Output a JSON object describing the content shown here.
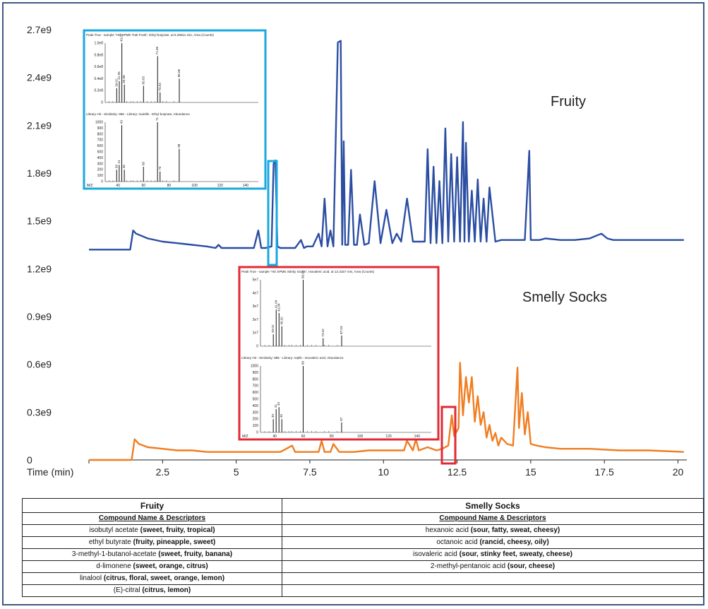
{
  "chart_data": {
    "type": "line",
    "xlabel": "Time (min)",
    "xlim": [
      0,
      20.3
    ],
    "ylim": [
      0,
      2.7
    ],
    "x_ticks": [
      "2.5",
      "5",
      "7.5",
      "10",
      "12.5",
      "15",
      "17.5",
      "20"
    ],
    "y_ticks": [
      "0",
      "0.3e9",
      "0.6e9",
      "0.9e9",
      "1.2e9",
      "1.5e9",
      "1.8e9",
      "2.1e9",
      "2.4e9",
      "2.7e9"
    ],
    "series": [
      {
        "name": "Fruity",
        "color": "#2b4ea2",
        "x": [
          0,
          1.4,
          1.5,
          1.6,
          2.0,
          2.5,
          3.0,
          3.5,
          4.0,
          4.3,
          4.4,
          4.5,
          4.8,
          5.0,
          5.6,
          5.75,
          5.85,
          5.95,
          6.0,
          6.2,
          6.27,
          6.33,
          6.4,
          6.5,
          7.0,
          7.2,
          7.3,
          7.4,
          7.6,
          7.8,
          7.9,
          8.0,
          8.1,
          8.2,
          8.3,
          8.45,
          8.55,
          8.6,
          8.65,
          8.7,
          8.8,
          8.9,
          9.0,
          9.1,
          9.2,
          9.35,
          9.5,
          9.7,
          9.9,
          10.1,
          10.3,
          10.45,
          10.6,
          10.8,
          11.0,
          11.2,
          11.4,
          11.5,
          11.6,
          11.7,
          11.8,
          11.9,
          12.0,
          12.1,
          12.2,
          12.3,
          12.4,
          12.5,
          12.6,
          12.7,
          12.75,
          12.8,
          12.9,
          13.0,
          13.1,
          13.2,
          13.3,
          13.4,
          13.5,
          13.6,
          13.8,
          14.0,
          14.2,
          14.4,
          14.6,
          14.8,
          14.95,
          15.0,
          15.1,
          15.3,
          15.5,
          16.0,
          16.5,
          17.0,
          17.4,
          17.6,
          17.8,
          18.0,
          18.5,
          19.0,
          19.5,
          20.2
        ],
        "y": [
          1.32,
          1.32,
          1.44,
          1.42,
          1.39,
          1.37,
          1.36,
          1.35,
          1.34,
          1.33,
          1.35,
          1.33,
          1.33,
          1.33,
          1.33,
          1.44,
          1.33,
          1.33,
          1.33,
          1.34,
          1.86,
          1.88,
          1.34,
          1.33,
          1.33,
          1.38,
          1.33,
          1.34,
          1.34,
          1.42,
          1.34,
          1.64,
          1.34,
          1.44,
          1.34,
          2.62,
          2.63,
          1.35,
          2.0,
          1.35,
          1.35,
          1.82,
          1.35,
          1.35,
          1.54,
          1.35,
          1.36,
          1.75,
          1.36,
          1.57,
          1.36,
          1.42,
          1.37,
          1.64,
          1.37,
          1.37,
          1.37,
          1.95,
          1.36,
          1.84,
          1.36,
          1.75,
          1.36,
          2.08,
          1.37,
          1.92,
          1.37,
          1.9,
          1.37,
          2.12,
          1.37,
          1.99,
          1.37,
          1.69,
          1.37,
          1.76,
          1.37,
          1.64,
          1.37,
          1.71,
          1.37,
          1.38,
          1.38,
          1.38,
          1.38,
          1.38,
          1.94,
          1.38,
          1.38,
          1.38,
          1.39,
          1.38,
          1.38,
          1.39,
          1.42,
          1.39,
          1.38,
          1.38,
          1.38,
          1.38,
          1.38,
          1.38
        ]
      },
      {
        "name": "Smelly Socks",
        "color": "#f07d21",
        "x": [
          0,
          1.45,
          1.55,
          1.7,
          2.0,
          2.5,
          3.0,
          3.5,
          4.0,
          4.5,
          5.0,
          5.5,
          6.0,
          6.5,
          6.9,
          7.0,
          7.5,
          7.8,
          7.9,
          8.0,
          8.2,
          8.3,
          8.5,
          9.0,
          9.5,
          10.0,
          10.5,
          10.7,
          10.8,
          11.0,
          11.1,
          11.2,
          11.5,
          11.8,
          12.0,
          12.2,
          12.32,
          12.4,
          12.55,
          12.6,
          12.7,
          12.8,
          12.9,
          13.0,
          13.1,
          13.2,
          13.3,
          13.4,
          13.5,
          13.6,
          13.7,
          13.8,
          13.9,
          14.0,
          14.2,
          14.4,
          14.55,
          14.6,
          14.7,
          14.8,
          14.9,
          15.0,
          15.2,
          15.5,
          16.0,
          17.0,
          18.0,
          19.0,
          20.2
        ],
        "y": [
          0.0,
          0.0,
          0.13,
          0.1,
          0.08,
          0.07,
          0.06,
          0.06,
          0.05,
          0.05,
          0.05,
          0.05,
          0.05,
          0.05,
          0.09,
          0.05,
          0.05,
          0.05,
          0.12,
          0.05,
          0.05,
          0.1,
          0.05,
          0.05,
          0.06,
          0.06,
          0.06,
          0.06,
          0.12,
          0.06,
          0.13,
          0.06,
          0.08,
          0.06,
          0.07,
          0.09,
          0.28,
          0.15,
          0.2,
          0.61,
          0.28,
          0.52,
          0.36,
          0.52,
          0.24,
          0.4,
          0.22,
          0.3,
          0.14,
          0.22,
          0.12,
          0.17,
          0.09,
          0.14,
          0.1,
          0.09,
          0.58,
          0.2,
          0.42,
          0.16,
          0.3,
          0.1,
          0.09,
          0.08,
          0.07,
          0.07,
          0.06,
          0.06,
          0.05
        ]
      }
    ],
    "annotations": [
      "Fruity",
      "Smelly Socks"
    ],
    "insets": [
      {
        "top_title": "Peak True - sample \"HS SPME Tutti Frutti\", Ethyl butyrate, at 6.28611 min, Area (Counts)",
        "top_ticks": [
          "1.0e8",
          "0.8e8",
          "0.6e8",
          "0.4e8",
          "0.2e8",
          "0"
        ],
        "top_peaks": [
          [
            39.02,
            0.24
          ],
          [
            41.05,
            0.36
          ],
          [
            43.07,
            1.0
          ],
          [
            45.06,
            0.3
          ],
          [
            60.03,
            0.28
          ],
          [
            71.06,
            0.78
          ],
          [
            73.04,
            0.17
          ],
          [
            88.06,
            0.4
          ]
        ],
        "top_labels": [
          "43.07",
          "71.06",
          "88.06",
          "60.03",
          "41.05",
          "39.02",
          "45.06",
          "73.04"
        ],
        "bottom_title": "Library Hit - Similarity: 956 - Library: mainlib - Ethyl butyrate, Abundance",
        "bottom_ticks": [
          "1000",
          "900",
          "800",
          "700",
          "600",
          "500",
          "400",
          "300",
          "200",
          "100",
          "0"
        ],
        "bottom_peaks": [
          [
            39,
            0.2
          ],
          [
            41,
            0.28
          ],
          [
            43,
            0.95
          ],
          [
            45,
            0.2
          ],
          [
            60,
            0.25
          ],
          [
            71,
            1.0
          ],
          [
            73,
            0.17
          ],
          [
            88,
            0.55
          ]
        ],
        "bottom_labels": [
          "43",
          "71",
          "88",
          "60",
          "41",
          "39",
          "45",
          "73"
        ],
        "x_ticks": [
          "40",
          "60",
          "80",
          "100",
          "120",
          "140"
        ],
        "mz_label": "M/Z"
      },
      {
        "top_title": "Peak True - sample \"HS SPME Stinky Socks\", Isovaleric acid, at 12.3157 min, Area (Counts)",
        "top_ticks": [
          "5e7",
          "4e7",
          "3e7",
          "2e7",
          "1e7",
          "0"
        ],
        "top_peaks": [
          [
            39.02,
            0.18
          ],
          [
            41.04,
            0.55
          ],
          [
            43.04,
            0.5
          ],
          [
            45.02,
            0.3
          ],
          [
            60.01,
            1.0
          ],
          [
            74.02,
            0.12
          ],
          [
            87.03,
            0.16
          ]
        ],
        "top_labels": [
          "60.01",
          "41.04",
          "43.04",
          "39.02",
          "45.02",
          "74.02",
          "87.03"
        ],
        "bottom_title": "Library Hit - Similarity: 885 - Library: replib - Isovaleric acid, Abundance",
        "bottom_ticks": [
          "1000",
          "900",
          "800",
          "700",
          "600",
          "500",
          "400",
          "300",
          "200",
          "100",
          "0"
        ],
        "bottom_peaks": [
          [
            39,
            0.2
          ],
          [
            41,
            0.35
          ],
          [
            43,
            0.38
          ],
          [
            45,
            0.2
          ],
          [
            60,
            1.0
          ],
          [
            87,
            0.15
          ]
        ],
        "bottom_labels": [
          "60",
          "41",
          "43",
          "39",
          "45",
          "87"
        ],
        "x_ticks": [
          "40",
          "60",
          "80",
          "100",
          "120",
          "140"
        ],
        "mz_label": "M/Z"
      }
    ]
  },
  "table": {
    "fruity_header": "Fruity",
    "socks_header": "Smelly Socks",
    "sub_header": "Compound Name & Descriptors",
    "rows": [
      {
        "f_name": "isobutyl acetate",
        "f_desc": "(sweet, fruity, tropical)",
        "s_name": "hexanoic acid",
        "s_desc": "(sour, fatty, sweat, cheesy)"
      },
      {
        "f_name": "ethyl butyrate",
        "f_desc": "(fruity, pineapple, sweet)",
        "s_name": "octanoic acid",
        "s_desc": "(rancid, cheesy, oily)"
      },
      {
        "f_name": "3-methyl-1-butanol-acetate",
        "f_desc": "(sweet, fruity, banana)",
        "s_name": "isovaleric acid",
        "s_desc": "(sour, stinky feet, sweaty, cheese)"
      },
      {
        "f_name": "d-limonene",
        "f_desc": "(sweet, orange, citrus)",
        "s_name": "2-methyl-pentanoic acid",
        "s_desc": "(sour, cheese)"
      },
      {
        "f_name": "linalool",
        "f_desc": "(citrus, floral, sweet, orange, lemon)",
        "s_name": "",
        "s_desc": ""
      },
      {
        "f_name": "(E)-citral",
        "f_desc": "(citrus, lemon)",
        "s_name": "",
        "s_desc": ""
      }
    ]
  }
}
